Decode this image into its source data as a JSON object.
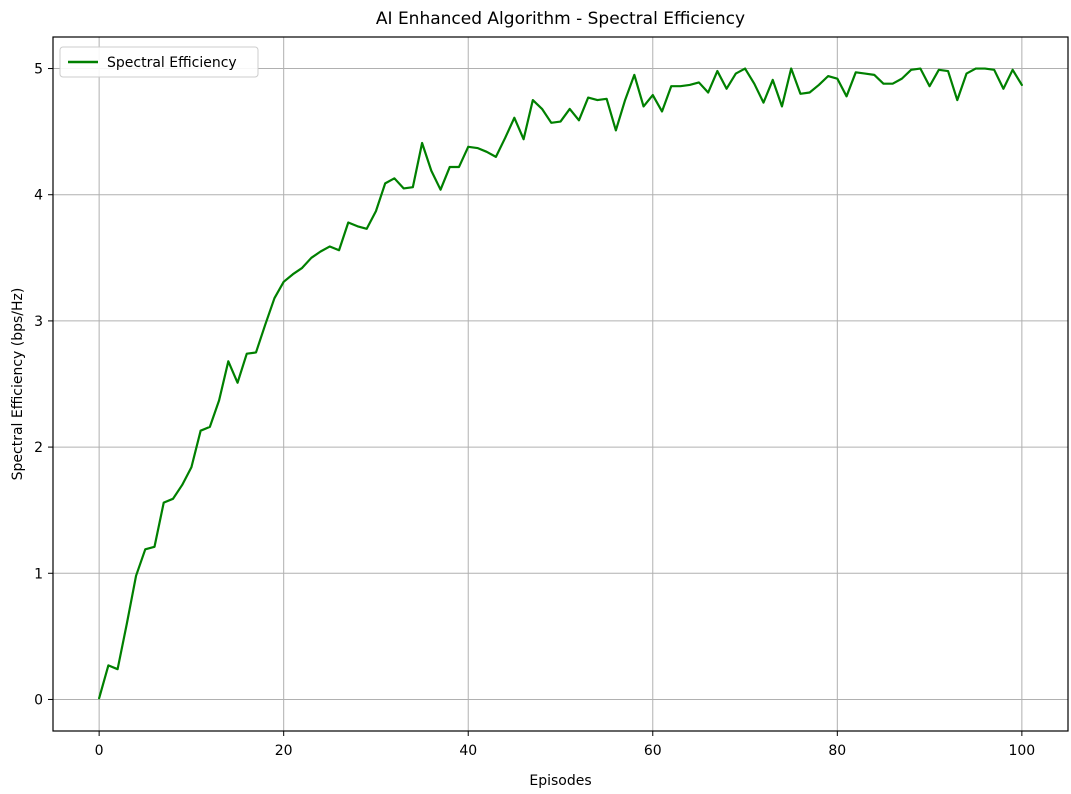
{
  "chart_data": {
    "type": "line",
    "title": "AI Enhanced Algorithm - Spectral Efficiency",
    "xlabel": "Episodes",
    "ylabel": "Spectral Efficiency (bps/Hz)",
    "xlim": [
      -5,
      105
    ],
    "ylim": [
      -0.25,
      5.25
    ],
    "xticks": [
      0,
      20,
      40,
      60,
      80,
      100
    ],
    "yticks": [
      0,
      1,
      2,
      3,
      4,
      5
    ],
    "grid": true,
    "legend_position": "top-left",
    "series": [
      {
        "name": "Spectral Efficiency",
        "color": "#008000",
        "x": [
          0,
          1,
          2,
          3,
          4,
          5,
          6,
          7,
          8,
          9,
          10,
          11,
          12,
          13,
          14,
          15,
          16,
          17,
          18,
          19,
          20,
          21,
          22,
          23,
          24,
          25,
          26,
          27,
          28,
          29,
          30,
          31,
          32,
          33,
          34,
          35,
          36,
          37,
          38,
          39,
          40,
          41,
          42,
          43,
          44,
          45,
          46,
          47,
          48,
          49,
          50,
          51,
          52,
          53,
          54,
          55,
          56,
          57,
          58,
          59,
          60,
          61,
          62,
          63,
          64,
          65,
          66,
          67,
          68,
          69,
          70,
          71,
          72,
          73,
          74,
          75,
          76,
          77,
          78,
          79,
          80,
          81,
          82,
          83,
          84,
          85,
          86,
          87,
          88,
          89,
          90,
          91,
          92,
          93,
          94,
          95,
          96,
          97,
          98,
          99,
          100
        ],
        "y": [
          0.01,
          0.27,
          0.24,
          0.6,
          0.98,
          1.19,
          1.21,
          1.56,
          1.59,
          1.7,
          1.84,
          2.13,
          2.16,
          2.37,
          2.68,
          2.51,
          2.74,
          2.75,
          2.97,
          3.18,
          3.31,
          3.37,
          3.42,
          3.5,
          3.55,
          3.59,
          3.56,
          3.78,
          3.75,
          3.73,
          3.87,
          4.09,
          4.13,
          4.05,
          4.06,
          4.41,
          4.19,
          4.04,
          4.22,
          4.22,
          4.38,
          4.37,
          4.34,
          4.3,
          4.45,
          4.61,
          4.44,
          4.75,
          4.68,
          4.57,
          4.58,
          4.68,
          4.59,
          4.77,
          4.75,
          4.76,
          4.51,
          4.75,
          4.95,
          4.7,
          4.79,
          4.66,
          4.86,
          4.86,
          4.87,
          4.89,
          4.81,
          4.98,
          4.84,
          4.96,
          5.0,
          4.88,
          4.73,
          4.91,
          4.7,
          5.0,
          4.8,
          4.81,
          4.87,
          4.94,
          4.92,
          4.78,
          4.97,
          4.96,
          4.95,
          4.88,
          4.88,
          4.92,
          4.99,
          5.0,
          4.86,
          4.99,
          4.98,
          4.75,
          4.96,
          5.0,
          5.0,
          4.99,
          4.84,
          4.99,
          4.87
        ]
      }
    ]
  }
}
